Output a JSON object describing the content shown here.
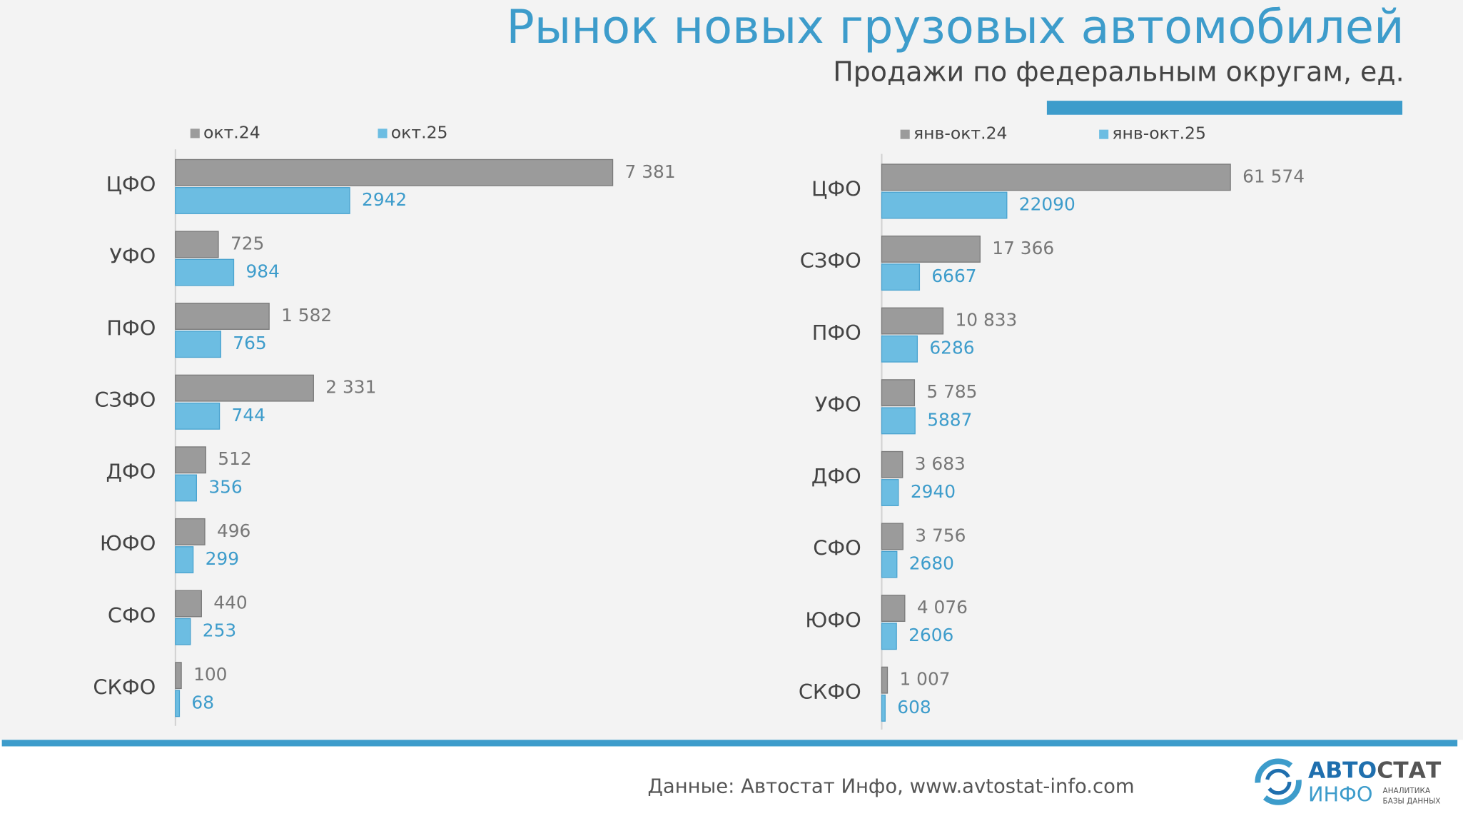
{
  "header": {
    "title": "Рынок новых грузовых автомобилей",
    "subtitle": "Продажи по федеральным округам, ед."
  },
  "chart_data": [
    {
      "type": "bar",
      "orientation": "horizontal",
      "categories": [
        "ЦФО",
        "УФО",
        "ПФО",
        "СЗФО",
        "ДФО",
        "ЮФО",
        "СФО",
        "СКФО"
      ],
      "series": [
        {
          "name": "окт.24",
          "color": "#9b9b9b",
          "values": [
            7381,
            725,
            1582,
            2331,
            512,
            496,
            440,
            100
          ],
          "value_labels": [
            "7 381",
            "725",
            "1 582",
            "2 331",
            "512",
            "496",
            "440",
            "100"
          ]
        },
        {
          "name": "окт.25",
          "color": "#6cbde2",
          "values": [
            2942,
            984,
            765,
            744,
            356,
            299,
            253,
            68
          ]
        }
      ],
      "xlim": [
        0,
        10000
      ]
    },
    {
      "type": "bar",
      "orientation": "horizontal",
      "categories": [
        "ЦФО",
        "СЗФО",
        "ПФО",
        "УФО",
        "ДФО",
        "СФО",
        "ЮФО",
        "СКФО"
      ],
      "series": [
        {
          "name": "янв-окт.24",
          "color": "#9b9b9b",
          "values": [
            61574,
            17366,
            10833,
            5785,
            3683,
            3756,
            4076,
            1007
          ],
          "value_labels": [
            "61 574",
            "17 366",
            "10 833",
            "5 785",
            "3 683",
            "3 756",
            "4 076",
            "1 007"
          ]
        },
        {
          "name": "янв-окт.25",
          "color": "#6cbde2",
          "values": [
            22090,
            6667,
            6286,
            5887,
            2940,
            2680,
            2606,
            608
          ]
        }
      ],
      "xlim": [
        0,
        100000
      ]
    }
  ],
  "footer": {
    "source": "Данные: Автостат Инфо, www.avtostat-info.com"
  },
  "logo": {
    "part1": "АВТО",
    "part2": "СТАТ",
    "part3": "ИНФО",
    "tagline1": "АНАЛИТИКА",
    "tagline2": "БАЗЫ ДАННЫХ"
  }
}
